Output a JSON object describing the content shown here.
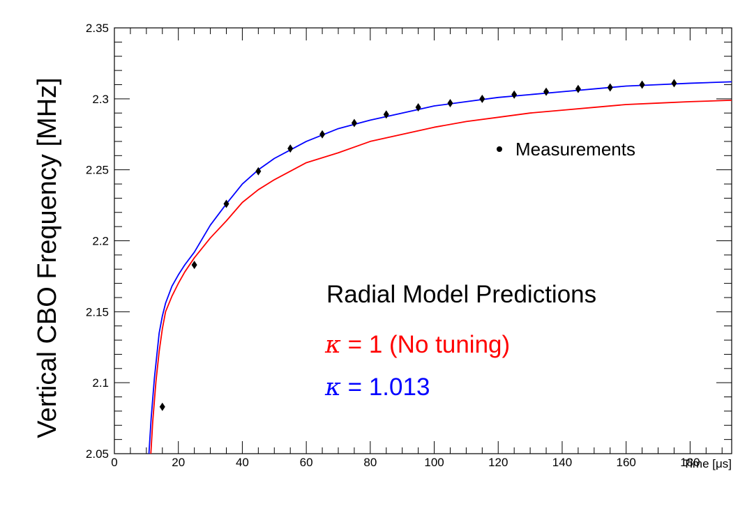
{
  "chart_data": {
    "type": "line",
    "title": "",
    "xlabel": "Time [μs]",
    "ylabel": "Vertical CBO Frequency [MHz]",
    "xlim": [
      0,
      193
    ],
    "ylim": [
      2.05,
      2.35
    ],
    "x_ticks": [
      0,
      20,
      40,
      60,
      80,
      100,
      120,
      140,
      160,
      180
    ],
    "x_tick_labels": [
      "0",
      "20",
      "40",
      "60",
      "80",
      "100",
      "120",
      "140",
      "160",
      "180"
    ],
    "y_ticks": [
      2.05,
      2.1,
      2.15,
      2.2,
      2.25,
      2.3,
      2.35
    ],
    "y_tick_labels": [
      "2.05",
      "2.1",
      "2.15",
      "2.2",
      "2.25",
      "2.3",
      "2.35"
    ],
    "grid": false,
    "colors": {
      "measurements": "#000000",
      "kappa_1": "#ff0000",
      "kappa_1013": "#0000ff"
    },
    "series": [
      {
        "name": "Measurements",
        "kind": "scatter",
        "color": "#000000",
        "marker": "diamond",
        "points": [
          {
            "x": 15,
            "y": 2.083
          },
          {
            "x": 25,
            "y": 2.183
          },
          {
            "x": 35,
            "y": 2.226
          },
          {
            "x": 45,
            "y": 2.249
          },
          {
            "x": 55,
            "y": 2.265
          },
          {
            "x": 65,
            "y": 2.275
          },
          {
            "x": 75,
            "y": 2.283
          },
          {
            "x": 85,
            "y": 2.289
          },
          {
            "x": 95,
            "y": 2.294
          },
          {
            "x": 105,
            "y": 2.297
          },
          {
            "x": 115,
            "y": 2.3
          },
          {
            "x": 125,
            "y": 2.303
          },
          {
            "x": 135,
            "y": 2.305
          },
          {
            "x": 145,
            "y": 2.307
          },
          {
            "x": 155,
            "y": 2.308
          },
          {
            "x": 165,
            "y": 2.31
          },
          {
            "x": 175,
            "y": 2.311
          }
        ]
      },
      {
        "name": "κ = 1 (No tuning)",
        "kind": "line",
        "color": "#ff0000",
        "points": [
          {
            "x": 11.4,
            "y": 2.05
          },
          {
            "x": 12,
            "y": 2.073
          },
          {
            "x": 13,
            "y": 2.101
          },
          {
            "x": 14,
            "y": 2.122
          },
          {
            "x": 15,
            "y": 2.138
          },
          {
            "x": 16,
            "y": 2.15
          },
          {
            "x": 18,
            "y": 2.161
          },
          {
            "x": 20,
            "y": 2.17
          },
          {
            "x": 22,
            "y": 2.178
          },
          {
            "x": 25,
            "y": 2.188
          },
          {
            "x": 30,
            "y": 2.202
          },
          {
            "x": 35,
            "y": 2.214
          },
          {
            "x": 40,
            "y": 2.227
          },
          {
            "x": 45,
            "y": 2.236
          },
          {
            "x": 50,
            "y": 2.243
          },
          {
            "x": 55,
            "y": 2.249
          },
          {
            "x": 60,
            "y": 2.255
          },
          {
            "x": 70,
            "y": 2.262
          },
          {
            "x": 80,
            "y": 2.27
          },
          {
            "x": 90,
            "y": 2.275
          },
          {
            "x": 100,
            "y": 2.28
          },
          {
            "x": 110,
            "y": 2.284
          },
          {
            "x": 120,
            "y": 2.287
          },
          {
            "x": 130,
            "y": 2.29
          },
          {
            "x": 140,
            "y": 2.292
          },
          {
            "x": 150,
            "y": 2.294
          },
          {
            "x": 160,
            "y": 2.296
          },
          {
            "x": 170,
            "y": 2.297
          },
          {
            "x": 180,
            "y": 2.298
          },
          {
            "x": 193,
            "y": 2.299
          }
        ]
      },
      {
        "name": "κ = 1.013",
        "kind": "line",
        "color": "#0000ff",
        "points": [
          {
            "x": 10.8,
            "y": 2.05
          },
          {
            "x": 11.5,
            "y": 2.075
          },
          {
            "x": 12.5,
            "y": 2.103
          },
          {
            "x": 14,
            "y": 2.135
          },
          {
            "x": 15,
            "y": 2.147
          },
          {
            "x": 16,
            "y": 2.156
          },
          {
            "x": 18,
            "y": 2.168
          },
          {
            "x": 20,
            "y": 2.176
          },
          {
            "x": 22,
            "y": 2.183
          },
          {
            "x": 25,
            "y": 2.192
          },
          {
            "x": 30,
            "y": 2.211
          },
          {
            "x": 35,
            "y": 2.226
          },
          {
            "x": 40,
            "y": 2.24
          },
          {
            "x": 45,
            "y": 2.25
          },
          {
            "x": 50,
            "y": 2.258
          },
          {
            "x": 55,
            "y": 2.264
          },
          {
            "x": 60,
            "y": 2.27
          },
          {
            "x": 70,
            "y": 2.279
          },
          {
            "x": 80,
            "y": 2.285
          },
          {
            "x": 90,
            "y": 2.29
          },
          {
            "x": 100,
            "y": 2.295
          },
          {
            "x": 110,
            "y": 2.298
          },
          {
            "x": 120,
            "y": 2.301
          },
          {
            "x": 130,
            "y": 2.303
          },
          {
            "x": 140,
            "y": 2.305
          },
          {
            "x": 150,
            "y": 2.307
          },
          {
            "x": 160,
            "y": 2.309
          },
          {
            "x": 170,
            "y": 2.31
          },
          {
            "x": 180,
            "y": 2.311
          },
          {
            "x": 193,
            "y": 2.312
          }
        ]
      }
    ],
    "legend": {
      "placement": "top-right",
      "label": "Measurements"
    },
    "annotations": {
      "title": "Radial Model Predictions",
      "kappa_symbol": "κ",
      "kappa_1_text": " = 1 (No tuning)",
      "kappa_1013_text": " = 1.013"
    }
  }
}
